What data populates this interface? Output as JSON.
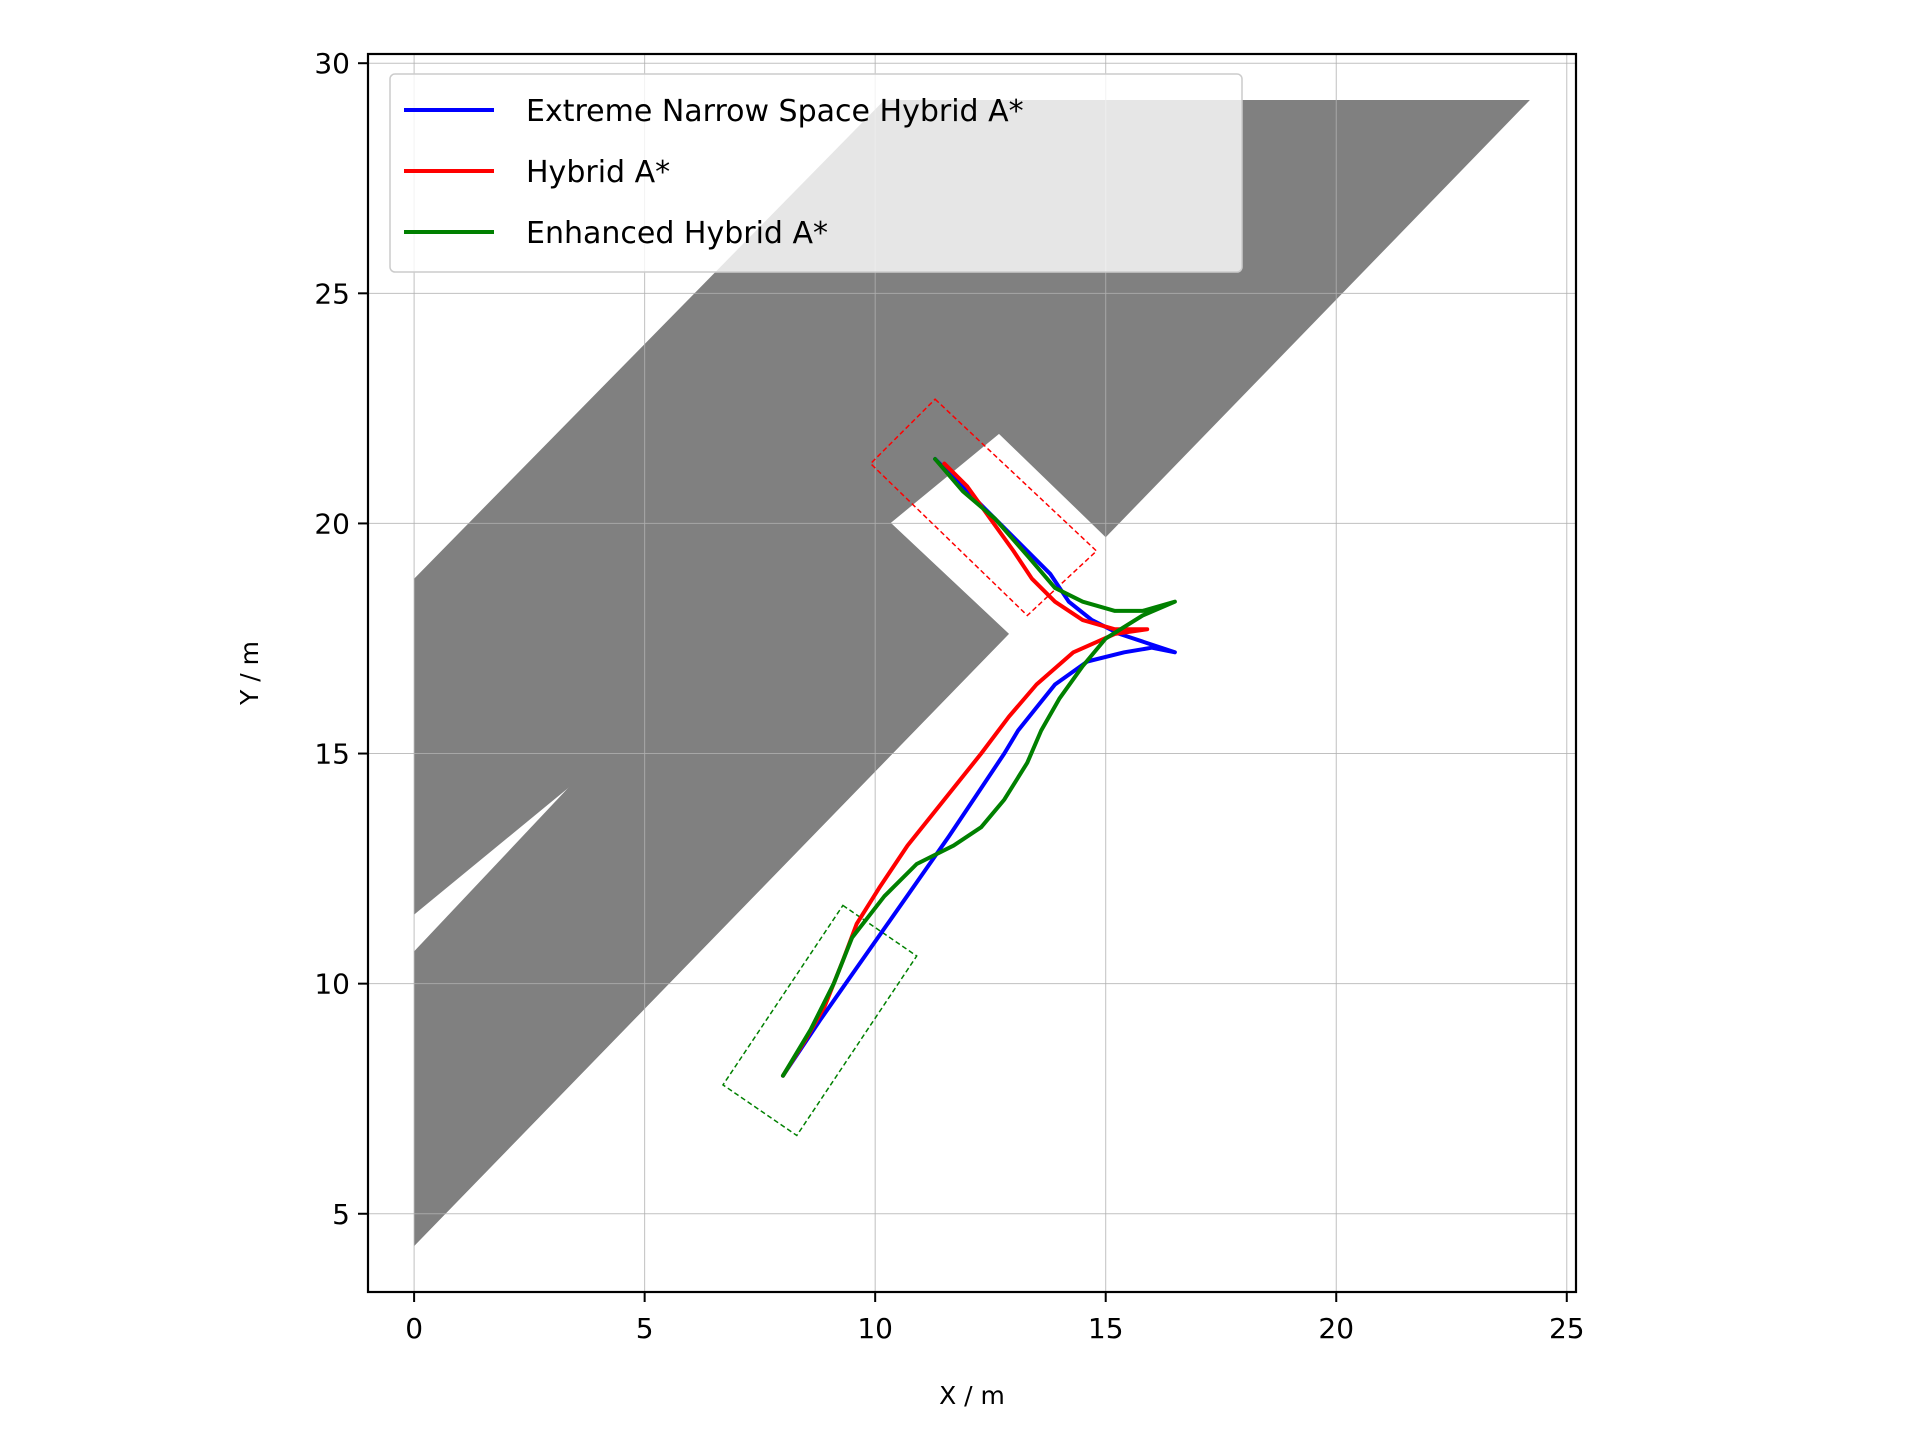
{
  "chart_data": {
    "type": "line",
    "xlabel": "X / m",
    "ylabel": "Y / m",
    "xlim": [
      -1,
      25.2
    ],
    "ylim": [
      3.3,
      30.2
    ],
    "xticks": [
      0,
      5,
      10,
      15,
      20,
      25
    ],
    "yticks": [
      5,
      10,
      15,
      20,
      25,
      30
    ],
    "grid": true,
    "legend_position": "top-left",
    "obstacles": [
      {
        "color": "#808080",
        "points": [
          [
            0,
            4.3
          ],
          [
            9.5,
            20.8
          ],
          [
            12.9,
            17.6
          ]
        ]
      },
      {
        "color": "#808080",
        "points": [
          [
            0,
            10.7
          ],
          [
            0,
            4.3
          ],
          [
            12.9,
            17.6
          ],
          [
            9.5,
            20.8
          ]
        ]
      },
      {
        "color": "#808080",
        "points": [
          [
            0,
            11.5
          ],
          [
            0,
            18.8
          ],
          [
            10.2,
            29.2
          ],
          [
            21.5,
            29.2
          ]
        ]
      },
      {
        "color": "#808080",
        "points": [
          [
            11.6,
            23.0
          ],
          [
            17.1,
            29.2
          ],
          [
            24.2,
            29.2
          ],
          [
            15.0,
            19.7
          ]
        ]
      }
    ],
    "boxes": [
      {
        "color": "#ff0000",
        "points": [
          [
            11.3,
            22.7
          ],
          [
            14.8,
            19.4
          ],
          [
            13.3,
            18.0
          ],
          [
            9.9,
            21.3
          ]
        ]
      },
      {
        "color": "#008000",
        "points": [
          [
            9.3,
            11.7
          ],
          [
            10.9,
            10.6
          ],
          [
            8.3,
            6.7
          ],
          [
            6.7,
            7.8
          ]
        ]
      }
    ],
    "series": [
      {
        "name": "Extreme Narrow Space Hybrid A*",
        "color": "#0000ff",
        "points": [
          [
            11.3,
            21.4
          ],
          [
            11.9,
            20.8
          ],
          [
            12.5,
            20.2
          ],
          [
            13.2,
            19.5
          ],
          [
            13.8,
            18.9
          ],
          [
            14.2,
            18.3
          ],
          [
            14.7,
            17.9
          ],
          [
            15.3,
            17.6
          ],
          [
            15.9,
            17.4
          ],
          [
            16.5,
            17.2
          ],
          [
            16.0,
            17.3
          ],
          [
            15.4,
            17.2
          ],
          [
            14.6,
            17.0
          ],
          [
            13.9,
            16.5
          ],
          [
            13.5,
            16.0
          ],
          [
            13.1,
            15.5
          ],
          [
            12.8,
            15.0
          ],
          [
            12.2,
            14.1
          ],
          [
            11.6,
            13.2
          ],
          [
            10.9,
            12.2
          ],
          [
            10.2,
            11.2
          ],
          [
            9.5,
            10.2
          ],
          [
            8.8,
            9.2
          ],
          [
            8.0,
            8.0
          ]
        ]
      },
      {
        "name": "Hybrid A*",
        "color": "#ff0000",
        "points": [
          [
            11.5,
            21.3
          ],
          [
            12.0,
            20.8
          ],
          [
            12.5,
            20.1
          ],
          [
            13.0,
            19.4
          ],
          [
            13.4,
            18.8
          ],
          [
            13.9,
            18.3
          ],
          [
            14.5,
            17.9
          ],
          [
            15.2,
            17.7
          ],
          [
            15.9,
            17.7
          ],
          [
            15.2,
            17.6
          ],
          [
            14.3,
            17.2
          ],
          [
            13.5,
            16.5
          ],
          [
            12.9,
            15.8
          ],
          [
            12.3,
            15.0
          ],
          [
            11.5,
            14.0
          ],
          [
            10.7,
            13.0
          ],
          [
            10.1,
            12.1
          ],
          [
            9.6,
            11.3
          ],
          [
            9.3,
            10.5
          ],
          [
            8.9,
            9.5
          ],
          [
            8.5,
            8.8
          ],
          [
            8.0,
            8.0
          ]
        ]
      },
      {
        "name": "Enhanced Hybrid A*",
        "color": "#008000",
        "points": [
          [
            11.3,
            21.4
          ],
          [
            11.9,
            20.7
          ],
          [
            12.6,
            20.1
          ],
          [
            13.3,
            19.3
          ],
          [
            13.9,
            18.6
          ],
          [
            14.5,
            18.3
          ],
          [
            15.2,
            18.1
          ],
          [
            15.8,
            18.1
          ],
          [
            16.5,
            18.3
          ],
          [
            15.8,
            18.0
          ],
          [
            15.0,
            17.5
          ],
          [
            14.5,
            16.9
          ],
          [
            14.0,
            16.2
          ],
          [
            13.6,
            15.5
          ],
          [
            13.3,
            14.8
          ],
          [
            12.8,
            14.0
          ],
          [
            12.3,
            13.4
          ],
          [
            11.7,
            13.0
          ],
          [
            10.9,
            12.6
          ],
          [
            10.2,
            11.9
          ],
          [
            9.5,
            11.0
          ],
          [
            9.1,
            10.0
          ],
          [
            8.6,
            9.0
          ],
          [
            8.0,
            8.0
          ]
        ]
      }
    ]
  }
}
